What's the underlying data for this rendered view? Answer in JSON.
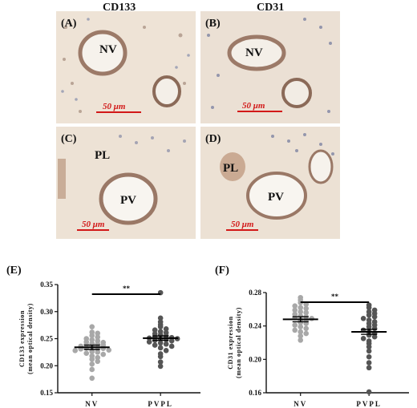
{
  "header": {
    "left": "CD133",
    "right": "CD31"
  },
  "micrographs": [
    {
      "label": "(A)",
      "tissue": [
        "NV"
      ],
      "scale": "50 μm"
    },
    {
      "label": "(B)",
      "tissue": [
        "NV"
      ],
      "scale": "50 μm"
    },
    {
      "label": "(C)",
      "tissue": [
        "PL",
        "PV"
      ],
      "scale": "50 μm"
    },
    {
      "label": "(D)",
      "tissue": [
        "PL",
        "PV"
      ],
      "scale": "50 μm"
    }
  ],
  "colors": {
    "nv_dots": "#a8a8a8",
    "pvpl_dots": "#555555",
    "scalebar": "#d21818",
    "stain_background": "#efe6dc"
  },
  "chart_data": [
    {
      "type": "scatter",
      "panel": "(E)",
      "ylabel_line1": "CD133 expression",
      "ylabel_line2": "(mean optical density)",
      "categories": [
        "NV",
        "PVPL"
      ],
      "ylim": [
        0.15,
        0.35
      ],
      "yticks": [
        "0.15",
        "0.20",
        "0.25",
        "0.30",
        "0.35"
      ],
      "significance": "**",
      "series": [
        {
          "category": "NV",
          "mean": 0.234,
          "sem": 0.004,
          "values": [
            0.272,
            0.262,
            0.26,
            0.256,
            0.253,
            0.25,
            0.248,
            0.246,
            0.244,
            0.243,
            0.241,
            0.24,
            0.239,
            0.238,
            0.236,
            0.235,
            0.234,
            0.233,
            0.232,
            0.231,
            0.229,
            0.228,
            0.226,
            0.225,
            0.223,
            0.221,
            0.218,
            0.215,
            0.212,
            0.208,
            0.203,
            0.193,
            0.177
          ]
        },
        {
          "category": "PVPL",
          "mean": 0.251,
          "sem": 0.004,
          "values": [
            0.335,
            0.288,
            0.281,
            0.276,
            0.272,
            0.268,
            0.266,
            0.263,
            0.261,
            0.259,
            0.257,
            0.255,
            0.253,
            0.252,
            0.251,
            0.25,
            0.249,
            0.248,
            0.247,
            0.246,
            0.244,
            0.242,
            0.24,
            0.238,
            0.236,
            0.233,
            0.228,
            0.222,
            0.217,
            0.207,
            0.199
          ]
        }
      ]
    },
    {
      "type": "scatter",
      "panel": "(F)",
      "ylabel_line1": "CD31 expression",
      "ylabel_line2": "(mean optical density)",
      "categories": [
        "NV",
        "PVPL"
      ],
      "ylim": [
        0.16,
        0.28
      ],
      "yticks": [
        "0.16",
        "0.20",
        "0.24",
        "0.28"
      ],
      "significance": "**",
      "series": [
        {
          "category": "NV",
          "mean": 0.248,
          "sem": 0.003,
          "values": [
            0.274,
            0.271,
            0.268,
            0.266,
            0.264,
            0.262,
            0.261,
            0.259,
            0.257,
            0.256,
            0.254,
            0.252,
            0.251,
            0.25,
            0.249,
            0.247,
            0.246,
            0.244,
            0.243,
            0.241,
            0.239,
            0.237,
            0.235,
            0.233,
            0.231,
            0.228,
            0.223
          ]
        },
        {
          "category": "PVPL",
          "mean": 0.233,
          "sem": 0.003,
          "values": [
            0.265,
            0.262,
            0.259,
            0.257,
            0.255,
            0.253,
            0.251,
            0.249,
            0.247,
            0.245,
            0.243,
            0.241,
            0.239,
            0.237,
            0.235,
            0.233,
            0.231,
            0.229,
            0.227,
            0.225,
            0.222,
            0.219,
            0.215,
            0.21,
            0.203,
            0.196,
            0.19,
            0.161
          ]
        }
      ]
    }
  ]
}
